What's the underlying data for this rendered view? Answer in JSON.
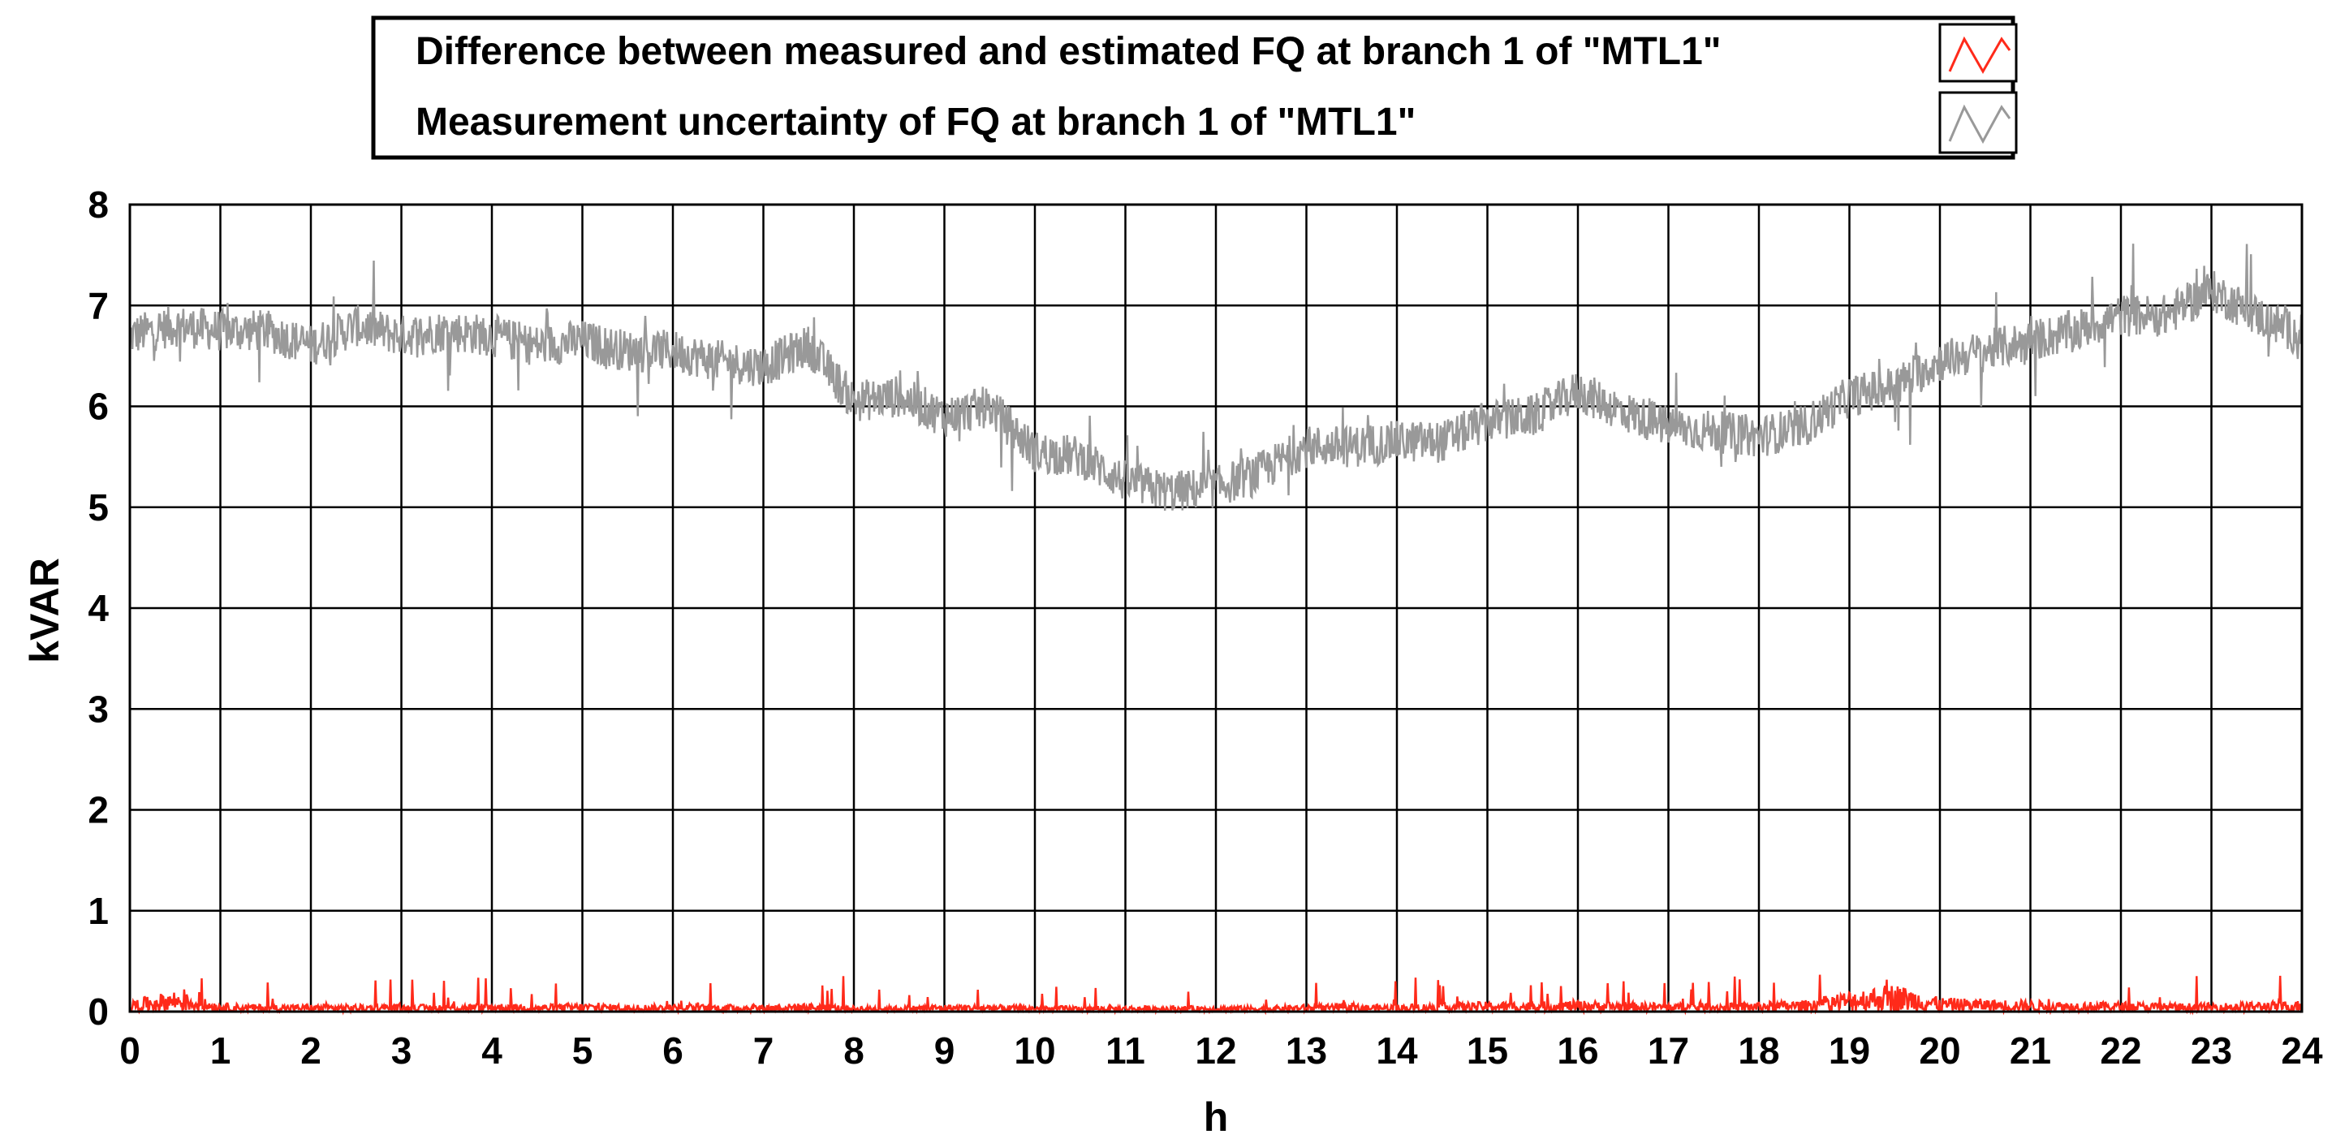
{
  "chart_data": {
    "type": "line",
    "xlabel": "h",
    "ylabel": "kVAR",
    "xlim": [
      0,
      24
    ],
    "ylim": [
      0,
      8
    ],
    "x_ticks": [
      "0",
      "1",
      "2",
      "3",
      "4",
      "5",
      "6",
      "7",
      "8",
      "9",
      "10",
      "11",
      "12",
      "13",
      "14",
      "15",
      "16",
      "17",
      "18",
      "19",
      "20",
      "21",
      "22",
      "23",
      "24"
    ],
    "y_ticks": [
      "0",
      "1",
      "2",
      "3",
      "4",
      "5",
      "6",
      "7",
      "8"
    ],
    "grid": true,
    "legend_position": "top-center",
    "series": [
      {
        "name": "Difference between measured and estimated FQ at branch 1 of \"MTL1\"",
        "color": "#ff2a1a",
        "x": [
          0,
          0.5,
          1,
          1.5,
          2,
          2.5,
          3,
          3.5,
          4,
          4.5,
          5,
          5.5,
          6,
          6.5,
          7,
          7.5,
          8,
          8.5,
          9,
          9.5,
          10,
          10.5,
          11,
          11.5,
          12,
          12.5,
          13,
          13.5,
          14,
          14.5,
          15,
          15.5,
          16,
          16.5,
          17,
          17.5,
          18,
          18.5,
          19,
          19.5,
          20,
          20.5,
          21,
          21.5,
          22,
          22.5,
          23,
          23.5,
          24
        ],
        "y": [
          0.08,
          0.15,
          0.06,
          0.05,
          0.05,
          0.05,
          0.05,
          0.05,
          0.06,
          0.05,
          0.06,
          0.05,
          0.05,
          0.05,
          0.05,
          0.06,
          0.04,
          0.04,
          0.05,
          0.05,
          0.04,
          0.04,
          0.04,
          0.04,
          0.04,
          0.04,
          0.05,
          0.05,
          0.05,
          0.06,
          0.07,
          0.07,
          0.08,
          0.07,
          0.06,
          0.06,
          0.07,
          0.08,
          0.15,
          0.2,
          0.1,
          0.09,
          0.08,
          0.07,
          0.07,
          0.06,
          0.06,
          0.07,
          0.08
        ]
      },
      {
        "name": "Measurement uncertainty of FQ at branch 1 of \"MTL1\"",
        "color": "#999999",
        "x": [
          0,
          0.5,
          1,
          1.5,
          2,
          2.5,
          3,
          3.5,
          4,
          4.5,
          5,
          5.5,
          6,
          6.5,
          7,
          7.5,
          8,
          8.5,
          9,
          9.5,
          10,
          10.5,
          11,
          11.5,
          12,
          12.5,
          13,
          13.5,
          14,
          14.5,
          15,
          15.5,
          16,
          16.5,
          17,
          17.5,
          18,
          18.5,
          19,
          19.5,
          20,
          20.5,
          21,
          21.5,
          22,
          22.5,
          23,
          23.5,
          24
        ],
        "y": [
          6.7,
          6.8,
          6.75,
          6.75,
          6.6,
          6.8,
          6.7,
          6.75,
          6.7,
          6.6,
          6.65,
          6.55,
          6.55,
          6.45,
          6.4,
          6.6,
          6.05,
          6.1,
          5.9,
          6.0,
          5.55,
          5.5,
          5.25,
          5.15,
          5.2,
          5.35,
          5.6,
          5.6,
          5.65,
          5.65,
          5.85,
          5.9,
          6.15,
          5.95,
          5.8,
          5.75,
          5.7,
          5.8,
          6.1,
          6.2,
          6.45,
          6.55,
          6.65,
          6.75,
          6.9,
          6.9,
          7.15,
          6.9,
          6.7
        ]
      }
    ]
  }
}
